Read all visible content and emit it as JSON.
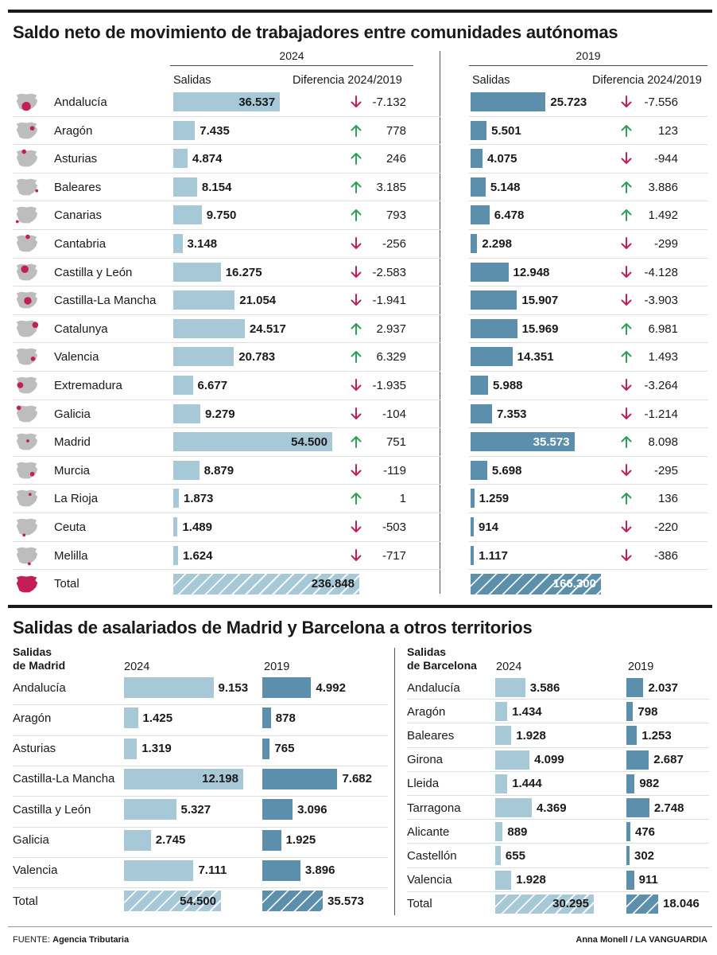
{
  "top": {
    "title": "Saldo neto de movimiento de trabajadores entre comunidades autónomas",
    "year_a": "2024",
    "year_b": "2019",
    "col_salidas": "Salidas",
    "col_diff": "Diferencia 2024/2019",
    "rows": [
      {
        "region": "Andalucía",
        "v2024": "36.537",
        "d2024": "-7.132",
        "v2019": "25.723",
        "d2019": "-7.556"
      },
      {
        "region": "Aragón",
        "v2024": "7.435",
        "d2024": "778",
        "v2019": "5.501",
        "d2019": "123"
      },
      {
        "region": "Asturias",
        "v2024": "4.874",
        "d2024": "246",
        "v2019": "4.075",
        "d2019": "-944"
      },
      {
        "region": "Baleares",
        "v2024": "8.154",
        "d2024": "3.185",
        "v2019": "5.148",
        "d2019": "3.886"
      },
      {
        "region": "Canarias",
        "v2024": "9.750",
        "d2024": "793",
        "v2019": "6.478",
        "d2019": "1.492"
      },
      {
        "region": "Cantabria",
        "v2024": "3.148",
        "d2024": "-256",
        "v2019": "2.298",
        "d2019": "-299"
      },
      {
        "region": "Castilla y León",
        "v2024": "16.275",
        "d2024": "-2.583",
        "v2019": "12.948",
        "d2019": "-4.128"
      },
      {
        "region": "Castilla-La Mancha",
        "v2024": "21.054",
        "d2024": "-1.941",
        "v2019": "15.907",
        "d2019": "-3.903"
      },
      {
        "region": "Catalunya",
        "v2024": "24.517",
        "d2024": "2.937",
        "v2019": "15.969",
        "d2019": "6.981"
      },
      {
        "region": "Valencia",
        "v2024": "20.783",
        "d2024": "6.329",
        "v2019": "14.351",
        "d2019": "1.493"
      },
      {
        "region": "Extremadura",
        "v2024": "6.677",
        "d2024": "-1.935",
        "v2019": "5.988",
        "d2019": "-3.264"
      },
      {
        "region": "Galicia",
        "v2024": "9.279",
        "d2024": "-104",
        "v2019": "7.353",
        "d2019": "-1.214"
      },
      {
        "region": "Madrid",
        "v2024": "54.500",
        "d2024": "751",
        "v2019": "35.573",
        "d2019": "8.098"
      },
      {
        "region": "Murcia",
        "v2024": "8.879",
        "d2024": "-119",
        "v2019": "5.698",
        "d2019": "-295"
      },
      {
        "region": "La Rioja",
        "v2024": "1.873",
        "d2024": "1",
        "v2019": "1.259",
        "d2019": "136"
      },
      {
        "region": "Ceuta",
        "v2024": "1.489",
        "d2024": "-503",
        "v2019": "914",
        "d2019": "-220"
      },
      {
        "region": "Melilla",
        "v2024": "1.624",
        "d2024": "-717",
        "v2019": "1.117",
        "d2019": "-386"
      }
    ],
    "total": {
      "label": "Total",
      "v2024": "236.848",
      "v2019": "166.300"
    }
  },
  "bottom": {
    "title": "Salidas de asalariados de Madrid y Barcelona a otros territorios",
    "madrid": {
      "header1": "Salidas",
      "header2": "de Madrid",
      "year_a": "2024",
      "year_b": "2019",
      "rows": [
        {
          "dest": "Andalucía",
          "v2024": "9.153",
          "v2019": "4.992"
        },
        {
          "dest": "Aragón",
          "v2024": "1.425",
          "v2019": "878"
        },
        {
          "dest": "Asturias",
          "v2024": "1.319",
          "v2019": "765"
        },
        {
          "dest": "Castilla-La Mancha",
          "v2024": "12.198",
          "v2019": "7.682"
        },
        {
          "dest": "Castilla y León",
          "v2024": "5.327",
          "v2019": "3.096"
        },
        {
          "dest": "Galicia",
          "v2024": "2.745",
          "v2019": "1.925"
        },
        {
          "dest": "Valencia",
          "v2024": "7.111",
          "v2019": "3.896"
        }
      ],
      "total": {
        "label": "Total",
        "v2024": "54.500",
        "v2019": "35.573"
      }
    },
    "barcelona": {
      "header1": "Salidas",
      "header2": "de Barcelona",
      "year_a": "2024",
      "year_b": "2019",
      "rows": [
        {
          "dest": "Andalucía",
          "v2024": "3.586",
          "v2019": "2.037"
        },
        {
          "dest": "Aragón",
          "v2024": "1.434",
          "v2019": "798"
        },
        {
          "dest": "Baleares",
          "v2024": "1.928",
          "v2019": "1.253"
        },
        {
          "dest": "Girona",
          "v2024": "4.099",
          "v2019": "2.687"
        },
        {
          "dest": "Lleida",
          "v2024": "1.444",
          "v2019": "982"
        },
        {
          "dest": "Tarragona",
          "v2024": "4.369",
          "v2019": "2.748"
        },
        {
          "dest": "Alicante",
          "v2024": "889",
          "v2019": "476"
        },
        {
          "dest": "Castellón",
          "v2024": "655",
          "v2019": "302"
        },
        {
          "dest": "Valencia",
          "v2024": "1.928",
          "v2019": "911"
        }
      ],
      "total": {
        "label": "Total",
        "v2024": "30.295",
        "v2019": "18.046"
      }
    }
  },
  "footer": {
    "source_label": "FUENTE:",
    "source": "Agencia Tributaria",
    "credit": "Anna Monell / LA VANGUARDIA"
  },
  "colors": {
    "bar_2024": "#a7c8d6",
    "bar_2019": "#5b8fac",
    "up": "#2f9e57",
    "down": "#c41e57",
    "map_gray": "#bdbdbd",
    "map_highlight": "#c41e57"
  },
  "chart_data": [
    {
      "type": "bar",
      "title": "Saldo neto de movimiento de trabajadores entre comunidades autónomas",
      "categories": [
        "Andalucía",
        "Aragón",
        "Asturias",
        "Baleares",
        "Canarias",
        "Cantabria",
        "Castilla y León",
        "Castilla-La Mancha",
        "Catalunya",
        "Valencia",
        "Extremadura",
        "Galicia",
        "Madrid",
        "Murcia",
        "La Rioja",
        "Ceuta",
        "Melilla"
      ],
      "series": [
        {
          "name": "2024",
          "values": [
            36537,
            7435,
            4874,
            8154,
            9750,
            3148,
            16275,
            21054,
            24517,
            20783,
            6677,
            9279,
            54500,
            8879,
            1873,
            1489,
            1624
          ]
        },
        {
          "name": "2019",
          "values": [
            25723,
            5501,
            4075,
            5148,
            6478,
            2298,
            12948,
            15907,
            15969,
            14351,
            5988,
            7353,
            35573,
            5698,
            1259,
            914,
            1117
          ]
        }
      ],
      "diferencia_2024_2019": {
        "2024": [
          -7132,
          778,
          246,
          3185,
          793,
          -256,
          -2583,
          -1941,
          2937,
          6329,
          -1935,
          -104,
          751,
          -119,
          1,
          -503,
          -717
        ],
        "2019": [
          -7556,
          123,
          -944,
          3886,
          1492,
          -299,
          -4128,
          -3903,
          6981,
          1493,
          -3264,
          -1214,
          8098,
          -295,
          136,
          -220,
          -386
        ]
      },
      "totals": {
        "2024": 236848,
        "2019": 166300
      },
      "xlabel": "",
      "ylabel": "Salidas"
    },
    {
      "type": "bar",
      "title": "Salidas de asalariados de Madrid y Barcelona a otros territorios",
      "categories": [
        "Andalucía",
        "Aragón",
        "Asturias",
        "Castilla-La Mancha",
        "Castilla y León",
        "Galicia",
        "Valencia"
      ],
      "series": [
        {
          "name": "2024",
          "values": [
            9153,
            1425,
            1319,
            12198,
            5327,
            2745,
            7111
          ]
        },
        {
          "name": "2019",
          "values": [
            4992,
            878,
            765,
            7682,
            3096,
            1925,
            3896
          ]
        }
      ],
      "totals": {
        "2024": 54500,
        "2019": 35573
      }
    },
    {
      "type": "bar",
      "categories": [
        "Andalucía",
        "Aragón",
        "Baleares",
        "Girona",
        "Lleida",
        "Tarragona",
        "Alicante",
        "Castellón",
        "Valencia"
      ],
      "series": [
        {
          "name": "2024",
          "values": [
            3586,
            1434,
            1928,
            4099,
            1444,
            4369,
            889,
            655,
            1928
          ]
        },
        {
          "name": "2019",
          "values": [
            2037,
            798,
            1253,
            2687,
            982,
            2748,
            476,
            302,
            911
          ]
        }
      ],
      "totals": {
        "2024": 30295,
        "2019": 18046
      }
    }
  ]
}
